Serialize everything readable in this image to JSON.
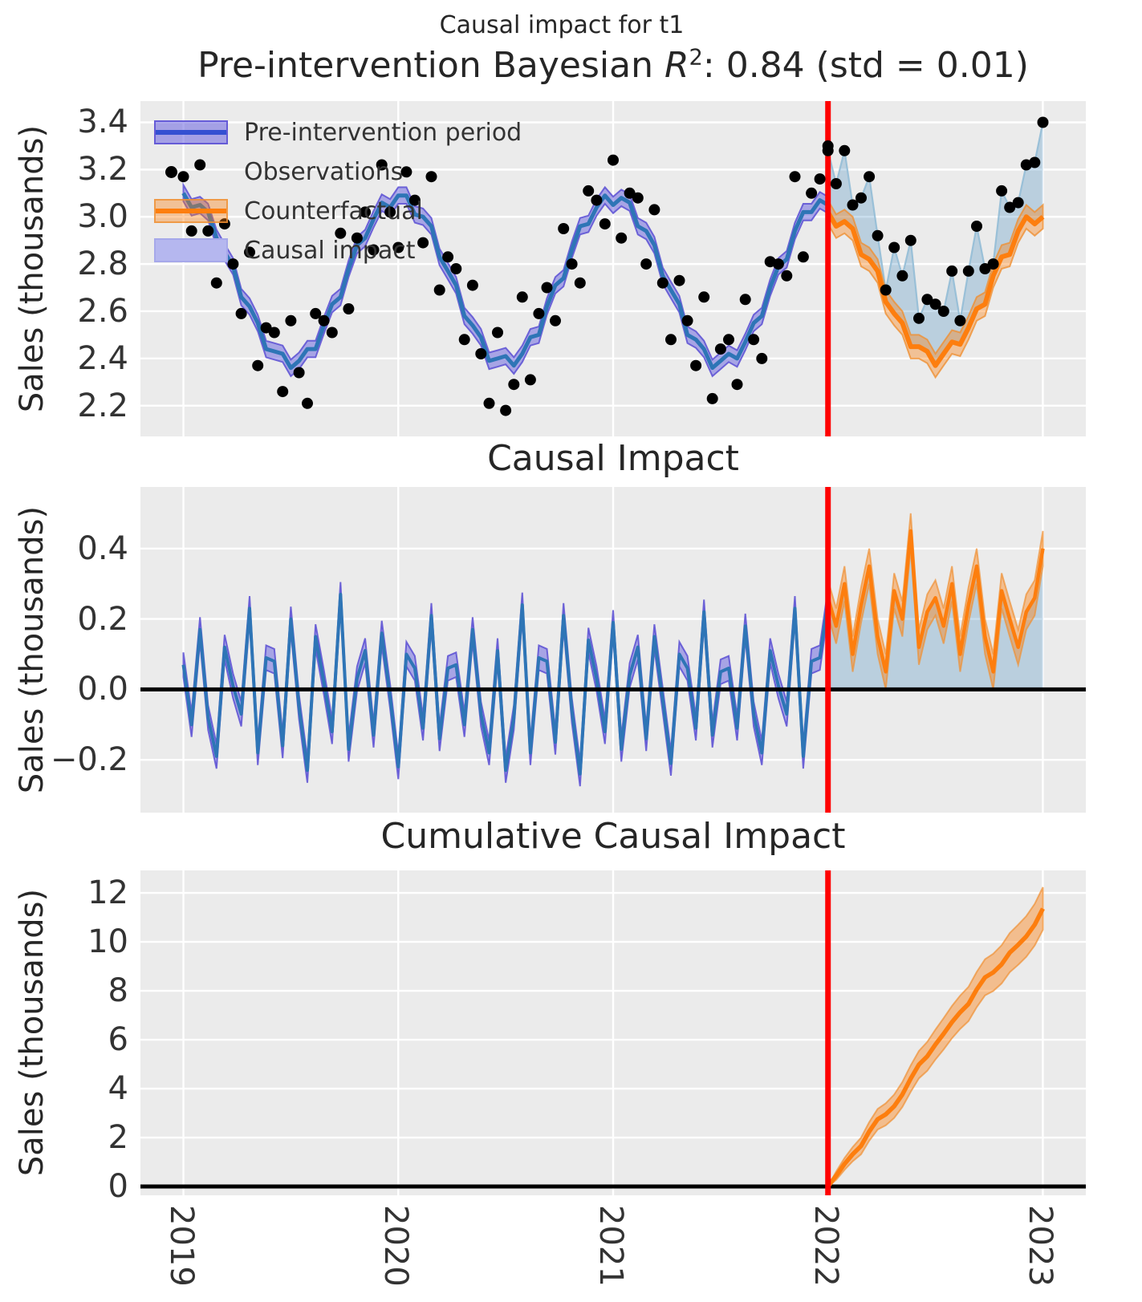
{
  "figure": {
    "suptitle": "Causal impact for t1",
    "top_title_parts": {
      "prefix": "Pre-intervention Bayesian ",
      "rvar": "R",
      "exponent": "2",
      "suffix": ": 0.84 (std = 0.01)"
    },
    "mid_title": "Causal Impact",
    "bottom_title": "Cumulative Causal Impact",
    "ylabel": "Sales (thousands)"
  },
  "legend": {
    "items": [
      {
        "label": "Pre-intervention period",
        "swatch": "blue-band-with-line"
      },
      {
        "label": "Observations",
        "swatch": "black-dot"
      },
      {
        "label": "Counterfactual",
        "swatch": "orange-band-with-line"
      },
      {
        "label": "Causal impact",
        "swatch": "light-blue-patch"
      }
    ]
  },
  "colors": {
    "axes_bg": "#ebebeb",
    "grid": "#ffffff",
    "pre_line": "#2e75b6",
    "pre_band": "#6a63e0",
    "pre_band_edge": "#5a4fd4",
    "legend_line_blue": "#3450d2",
    "orange": "#fd7e0e",
    "orange_band_edge": "#ef9033",
    "impact_fill": "#1f77b4",
    "connector": "#93bcd6",
    "observation_dot": "#000000",
    "intervention_line": "#ff0000",
    "zero_line": "#000000",
    "legend_patch": "#b5b7ef",
    "text": "#333333"
  },
  "chart_data": {
    "type": "line",
    "xlim": [
      2018.8,
      2023.2
    ],
    "xticks": [
      2019,
      2020,
      2021,
      2022,
      2023
    ],
    "xticklabels": [
      "2019",
      "2020",
      "2021",
      "2022",
      "2023"
    ],
    "intervention_x": 2022,
    "x_years_pre": [
      2019.0,
      2019.038,
      2019.077,
      2019.115,
      2019.154,
      2019.192,
      2019.231,
      2019.269,
      2019.308,
      2019.346,
      2019.385,
      2019.423,
      2019.462,
      2019.5,
      2019.538,
      2019.577,
      2019.615,
      2019.654,
      2019.692,
      2019.731,
      2019.769,
      2019.808,
      2019.846,
      2019.885,
      2019.923,
      2019.962,
      2020.0,
      2020.038,
      2020.077,
      2020.115,
      2020.154,
      2020.192,
      2020.231,
      2020.269,
      2020.308,
      2020.346,
      2020.385,
      2020.423,
      2020.462,
      2020.5,
      2020.538,
      2020.577,
      2020.615,
      2020.654,
      2020.692,
      2020.731,
      2020.769,
      2020.808,
      2020.846,
      2020.885,
      2020.923,
      2020.962,
      2021.0,
      2021.038,
      2021.077,
      2021.115,
      2021.154,
      2021.192,
      2021.231,
      2021.269,
      2021.308,
      2021.346,
      2021.385,
      2021.423,
      2021.462,
      2021.5,
      2021.538,
      2021.577,
      2021.615,
      2021.654,
      2021.692,
      2021.731,
      2021.769,
      2021.808,
      2021.846,
      2021.885,
      2021.923,
      2021.962,
      2022.0
    ],
    "x_years_post": [
      2022.0,
      2022.038,
      2022.077,
      2022.115,
      2022.154,
      2022.192,
      2022.231,
      2022.269,
      2022.308,
      2022.346,
      2022.385,
      2022.423,
      2022.462,
      2022.5,
      2022.538,
      2022.577,
      2022.615,
      2022.654,
      2022.692,
      2022.731,
      2022.769,
      2022.808,
      2022.846,
      2022.885,
      2022.923,
      2022.962,
      2023.0
    ],
    "subplots": [
      {
        "name": "observations-and-counterfactual",
        "title": "Pre-intervention Bayesian R^2: 0.84 (std = 0.01)",
        "ylabel": "Sales (thousands)",
        "ylim": [
          2.07,
          3.49
        ],
        "yticks": [
          2.2,
          2.4,
          2.6,
          2.8,
          3.0,
          3.2,
          3.4
        ],
        "yticklabels": [
          "2.2",
          "2.4",
          "2.6",
          "2.8",
          "3.0",
          "3.2",
          "3.4"
        ],
        "series": {
          "pre_mean": [
            3.1,
            3.04,
            3.05,
            3.02,
            2.91,
            2.85,
            2.79,
            2.66,
            2.62,
            2.55,
            2.44,
            2.43,
            2.42,
            2.36,
            2.39,
            2.44,
            2.44,
            2.54,
            2.63,
            2.66,
            2.78,
            2.88,
            2.91,
            2.99,
            3.06,
            3.04,
            3.09,
            3.09,
            3.01,
            3.0,
            2.96,
            2.83,
            2.77,
            2.71,
            2.58,
            2.54,
            2.49,
            2.39,
            2.4,
            2.41,
            2.37,
            2.42,
            2.49,
            2.5,
            2.62,
            2.71,
            2.74,
            2.86,
            2.96,
            2.97,
            3.04,
            3.09,
            3.05,
            3.08,
            3.06,
            2.96,
            2.94,
            2.88,
            2.75,
            2.69,
            2.63,
            2.5,
            2.48,
            2.44,
            2.36,
            2.39,
            2.42,
            2.4,
            2.47,
            2.55,
            2.58,
            2.7,
            2.79,
            2.82,
            2.94,
            3.02,
            3.02,
            3.07,
            3.05
          ],
          "pre_band_halfwidth": 0.035,
          "observations_pre": [
            3.17,
            2.94,
            3.22,
            2.94,
            2.72,
            2.97,
            2.8,
            2.59,
            2.85,
            2.37,
            2.53,
            2.51,
            2.26,
            2.56,
            2.34,
            2.21,
            2.59,
            2.56,
            2.51,
            2.93,
            2.61,
            2.91,
            3.02,
            2.86,
            3.22,
            3.02,
            2.87,
            3.19,
            3.07,
            2.89,
            3.17,
            2.69,
            2.83,
            2.78,
            2.48,
            2.71,
            2.42,
            2.21,
            2.51,
            2.18,
            2.29,
            2.66,
            2.31,
            2.59,
            2.7,
            2.56,
            2.95,
            2.8,
            2.72,
            3.11,
            3.07,
            2.97,
            3.24,
            2.91,
            3.1,
            3.08,
            2.8,
            3.03,
            2.72,
            2.48,
            2.73,
            2.56,
            2.37,
            2.66,
            2.23,
            2.44,
            2.48,
            2.29,
            2.65,
            2.48,
            2.4,
            2.81,
            2.8,
            2.75,
            3.17,
            2.83,
            3.1,
            3.16,
            3.3
          ],
          "counterfactual_mean": [
            3.02,
            2.96,
            2.98,
            2.95,
            2.84,
            2.82,
            2.77,
            2.64,
            2.59,
            2.55,
            2.45,
            2.45,
            2.43,
            2.37,
            2.42,
            2.47,
            2.46,
            2.53,
            2.61,
            2.63,
            2.75,
            2.83,
            2.84,
            2.94,
            3.0,
            2.97,
            3.0
          ],
          "counterfactual_band_halfwidth": 0.05,
          "observations_post": [
            3.28,
            3.14,
            3.28,
            3.05,
            3.08,
            3.17,
            2.92,
            2.69,
            2.87,
            2.75,
            2.9,
            2.57,
            2.65,
            2.63,
            2.6,
            2.77,
            2.56,
            2.77,
            2.96,
            2.78,
            2.8,
            3.11,
            3.04,
            3.06,
            3.22,
            3.23,
            3.4
          ]
        }
      },
      {
        "name": "causal-impact",
        "title": "Causal Impact",
        "ylabel": "Sales (thousands)",
        "ylim": [
          -0.35,
          0.575
        ],
        "yticks": [
          -0.2,
          0.0,
          0.2,
          0.4
        ],
        "yticklabels": [
          "−0.2",
          "0.0",
          "0.2",
          "0.4"
        ],
        "series": {
          "impact_pre": [
            0.07,
            -0.1,
            0.17,
            -0.08,
            -0.19,
            0.12,
            0.01,
            -0.07,
            0.23,
            -0.18,
            0.09,
            0.08,
            -0.16,
            0.2,
            -0.05,
            -0.23,
            0.15,
            0.02,
            -0.12,
            0.27,
            -0.17,
            0.03,
            0.11,
            -0.13,
            0.16,
            -0.02,
            -0.22,
            0.1,
            0.06,
            -0.11,
            0.21,
            -0.14,
            0.06,
            0.07,
            -0.1,
            0.17,
            -0.07,
            -0.18,
            0.11,
            -0.23,
            -0.08,
            0.24,
            -0.18,
            0.09,
            0.08,
            -0.15,
            0.21,
            -0.06,
            -0.24,
            0.14,
            0.03,
            -0.12,
            0.19,
            -0.17,
            0.04,
            0.12,
            -0.14,
            0.15,
            -0.03,
            -0.21,
            0.1,
            0.06,
            -0.11,
            0.22,
            -0.13,
            0.05,
            0.06,
            -0.11,
            0.18,
            -0.07,
            -0.18,
            0.11,
            0.01,
            -0.07,
            0.23,
            -0.19,
            0.08,
            0.09,
            0.25
          ],
          "impact_pre_band_halfwidth": 0.035,
          "impact_post": [
            0.26,
            0.18,
            0.3,
            0.1,
            0.24,
            0.35,
            0.15,
            0.05,
            0.28,
            0.2,
            0.45,
            0.12,
            0.22,
            0.26,
            0.18,
            0.3,
            0.1,
            0.24,
            0.35,
            0.15,
            0.05,
            0.28,
            0.2,
            0.12,
            0.22,
            0.26,
            0.4
          ],
          "impact_post_band_halfwidth": 0.05,
          "zero_line": 0.0
        }
      },
      {
        "name": "cumulative-causal-impact",
        "title": "Cumulative Causal Impact",
        "ylabel": "Sales (thousands)",
        "ylim": [
          -0.36,
          12.92
        ],
        "yticks": [
          0,
          2,
          4,
          6,
          8,
          10,
          12
        ],
        "yticklabels": [
          "0",
          "2",
          "4",
          "6",
          "8",
          "10",
          "12"
        ],
        "series": {
          "cumulative_mean": [
            0.0,
            0.44,
            0.92,
            1.32,
            1.66,
            2.25,
            2.75,
            2.95,
            3.28,
            3.76,
            4.41,
            4.98,
            5.32,
            5.8,
            6.24,
            6.72,
            7.12,
            7.46,
            8.05,
            8.55,
            8.75,
            9.08,
            9.56,
            9.88,
            10.22,
            10.7,
            11.36
          ],
          "cumulative_band_halfwidth": [
            0.0,
            0.17,
            0.24,
            0.29,
            0.34,
            0.38,
            0.42,
            0.45,
            0.48,
            0.51,
            0.54,
            0.56,
            0.59,
            0.61,
            0.64,
            0.66,
            0.68,
            0.7,
            0.72,
            0.74,
            0.76,
            0.78,
            0.8,
            0.82,
            0.83,
            0.85,
            0.87
          ],
          "zero_line": 0.0
        }
      }
    ]
  }
}
